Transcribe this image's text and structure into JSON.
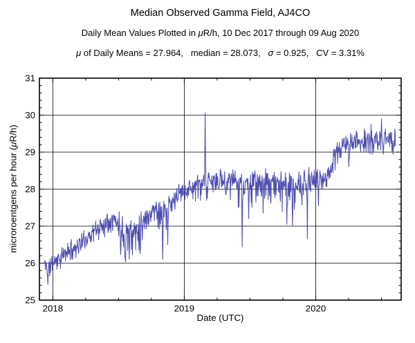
{
  "header": {
    "title": "Median Observed Gamma Field, AJ4CO",
    "subtitle": "Daily Mean Values Plotted in μR/h, 10 Dec 2017 through 09 Aug 2020",
    "subtitle_parts": [
      {
        "text": "Daily Mean Values Plotted in ",
        "italic": false
      },
      {
        "text": "μ",
        "italic": true
      },
      {
        "text": "R/h, 10 Dec 2017 through 09 Aug 2020",
        "italic": false
      }
    ],
    "stats_line": "μ of Daily Means = 27.964,   median = 28.073,   σ = 0.925,   CV = 3.31%",
    "stats_parts": [
      {
        "text": "μ",
        "italic": true
      },
      {
        "text": " of Daily Means = 27.964,   median = 28.073,   ",
        "italic": false
      },
      {
        "text": "σ",
        "italic": true
      },
      {
        "text": " = 0.925,   CV = 3.31%",
        "italic": false
      }
    ]
  },
  "chart_data": {
    "type": "line",
    "title": "Median Observed Gamma Field, AJ4CO",
    "xlabel": "Date (UTC)",
    "ylabel": "microroentgens per hour (μR/h)",
    "ylabel_parts": [
      {
        "text": "microroentgens per hour (",
        "italic": false
      },
      {
        "text": "μ",
        "italic": true
      },
      {
        "text": "R/h)",
        "italic": false
      }
    ],
    "date_range": {
      "start": "10 Dec 2017",
      "end": "09 Aug 2020"
    },
    "stats": {
      "mu_of_daily_means": 27.964,
      "median": 28.073,
      "sigma": 0.925,
      "cv_percent": 3.31
    },
    "xlim": [
      2017.898,
      2020.65
    ],
    "ylim": [
      25,
      31
    ],
    "x_major_ticks": [
      {
        "value": 2018,
        "label": "2018"
      },
      {
        "value": 2019,
        "label": "2019"
      },
      {
        "value": 2020,
        "label": "2020"
      }
    ],
    "x_minor_interval_years": 0.25,
    "y_major_ticks": [
      {
        "value": 25,
        "label": "25"
      },
      {
        "value": 26,
        "label": "26"
      },
      {
        "value": 27,
        "label": "27"
      },
      {
        "value": 28,
        "label": "28"
      },
      {
        "value": 29,
        "label": "29"
      },
      {
        "value": 30,
        "label": "30"
      },
      {
        "value": 31,
        "label": "31"
      }
    ],
    "y_minor_interval": 0.2,
    "grid": {
      "x_gridlines": [
        2018,
        2019,
        2020
      ],
      "y_gridlines": [
        26,
        27,
        28,
        29,
        30
      ]
    },
    "legend": "none",
    "line_color": "#3C3CA8",
    "axis_color": "#000000",
    "series": {
      "name": "daily-mean-gamma-field",
      "sampling": "daily",
      "start_year": 2017.935,
      "end_year": 2020.608,
      "seed": 11,
      "trend_anchors": [
        [
          2017.935,
          26.0
        ],
        [
          2017.965,
          25.85
        ],
        [
          2018.0,
          26.05
        ],
        [
          2018.06,
          26.15
        ],
        [
          2018.12,
          26.35
        ],
        [
          2018.18,
          26.45
        ],
        [
          2018.23,
          26.6
        ],
        [
          2018.29,
          26.8
        ],
        [
          2018.35,
          26.95
        ],
        [
          2018.4,
          27.1
        ],
        [
          2018.45,
          27.25
        ],
        [
          2018.5,
          27.05
        ],
        [
          2018.55,
          26.85
        ],
        [
          2018.6,
          26.85
        ],
        [
          2018.65,
          27.0
        ],
        [
          2018.7,
          27.2
        ],
        [
          2018.75,
          27.4
        ],
        [
          2018.79,
          27.5
        ],
        [
          2018.83,
          27.35
        ],
        [
          2018.88,
          27.5
        ],
        [
          2018.93,
          27.75
        ],
        [
          2018.98,
          27.95
        ],
        [
          2019.05,
          28.05
        ],
        [
          2019.12,
          28.1
        ],
        [
          2019.2,
          28.2
        ],
        [
          2019.3,
          28.25
        ],
        [
          2019.4,
          28.2
        ],
        [
          2019.5,
          28.15
        ],
        [
          2019.6,
          28.2
        ],
        [
          2019.7,
          28.2
        ],
        [
          2019.78,
          28.1
        ],
        [
          2019.86,
          28.05
        ],
        [
          2019.93,
          28.2
        ],
        [
          2019.99,
          28.3
        ],
        [
          2020.05,
          28.25
        ],
        [
          2020.1,
          28.45
        ],
        [
          2020.15,
          28.9
        ],
        [
          2020.19,
          29.15
        ],
        [
          2020.25,
          29.2
        ],
        [
          2020.32,
          29.3
        ],
        [
          2020.4,
          29.3
        ],
        [
          2020.48,
          29.3
        ],
        [
          2020.55,
          29.35
        ],
        [
          2020.608,
          29.35
        ]
      ],
      "noise_bands": [
        [
          2017.93,
          2018.06,
          0.12,
          1.4
        ],
        [
          2018.06,
          2018.32,
          0.13,
          1.2
        ],
        [
          2018.32,
          2018.5,
          0.15,
          1.3
        ],
        [
          2018.5,
          2018.68,
          0.22,
          1.8
        ],
        [
          2018.68,
          2018.8,
          0.15,
          1.4
        ],
        [
          2018.8,
          2018.92,
          0.17,
          1.9
        ],
        [
          2018.92,
          2019.06,
          0.13,
          1.2
        ],
        [
          2019.06,
          2019.4,
          0.17,
          1.4
        ],
        [
          2019.4,
          2019.72,
          0.18,
          1.8
        ],
        [
          2019.72,
          2019.97,
          0.19,
          1.9
        ],
        [
          2019.97,
          2020.13,
          0.15,
          1.3
        ],
        [
          2020.13,
          2020.61,
          0.16,
          1.2
        ]
      ],
      "events": [
        [
          2017.963,
          25.42
        ],
        [
          2018.555,
          26.03
        ],
        [
          2018.605,
          26.22
        ],
        [
          2018.835,
          26.1
        ],
        [
          2018.875,
          26.5
        ],
        [
          2019.158,
          30.06
        ],
        [
          2019.17,
          27.7
        ],
        [
          2019.44,
          26.44
        ],
        [
          2019.49,
          27.2
        ],
        [
          2019.6,
          27.35
        ],
        [
          2019.78,
          27.05
        ],
        [
          2019.825,
          27.0
        ],
        [
          2019.937,
          26.66
        ],
        [
          2020.02,
          27.55
        ],
        [
          2020.25,
          28.6
        ],
        [
          2020.42,
          29.75
        ],
        [
          2020.5,
          29.9
        ],
        [
          2020.515,
          28.95
        ]
      ]
    }
  }
}
